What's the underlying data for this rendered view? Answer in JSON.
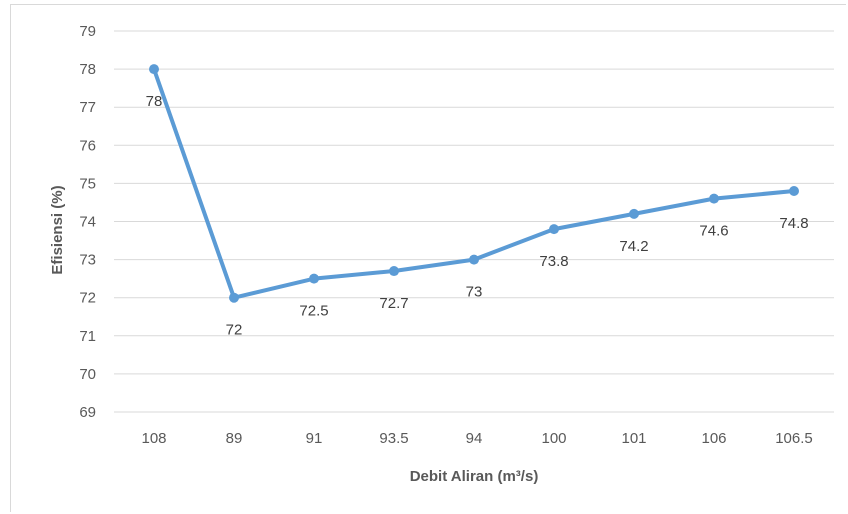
{
  "chart_data": {
    "type": "line",
    "categories": [
      "108",
      "89",
      "91",
      "93.5",
      "94",
      "100",
      "101",
      "106",
      "106.5"
    ],
    "series": [
      {
        "values": [
          78,
          72,
          72.5,
          72.7,
          73,
          73.8,
          74.2,
          74.6,
          74.8
        ]
      }
    ],
    "data_labels": [
      "78",
      "72",
      "72.5",
      "72.7",
      "73",
      "73.8",
      "74.2",
      "74.6",
      "74.8"
    ],
    "xlabel": "Debit Aliran (m³/s)",
    "ylabel": "Efisiensi (%)",
    "ylim": [
      69,
      79
    ],
    "yticks": [
      "69",
      "70",
      "71",
      "72",
      "73",
      "74",
      "75",
      "76",
      "77",
      "78",
      "79"
    ],
    "grid": true,
    "legend": "none",
    "colors": {
      "line": "#5b9bd5",
      "grid": "#d9d9d9"
    }
  }
}
